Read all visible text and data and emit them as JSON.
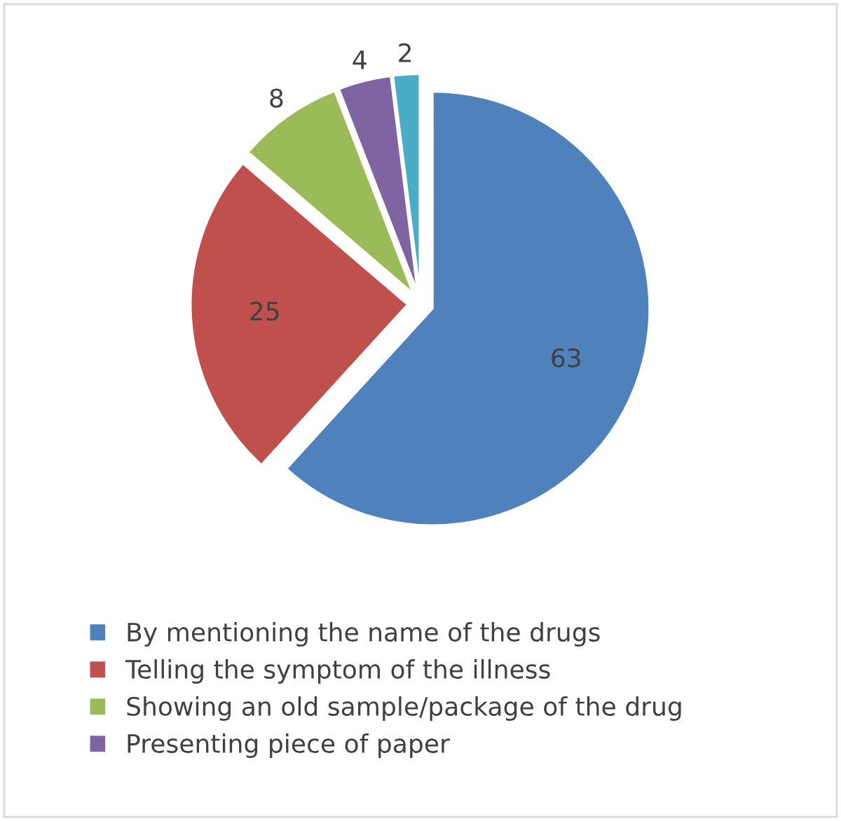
{
  "chart_data": {
    "type": "pie",
    "categories": [
      "By mentioning the name of the drugs",
      "Telling the symptom of the illness",
      "Showing an old sample/package of the drug",
      "Presenting piece of paper",
      null
    ],
    "values": [
      63,
      25,
      8,
      4,
      2
    ],
    "colors": [
      "#4f81bd",
      "#c0504d",
      "#9bbb59",
      "#8064a2",
      "#4bacc6"
    ],
    "data_labels": true,
    "legend": "bottom"
  }
}
